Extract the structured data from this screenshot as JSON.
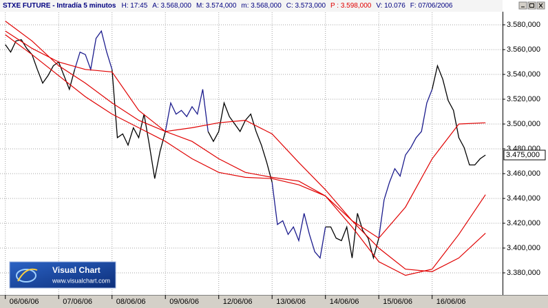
{
  "chart_data": {
    "type": "line",
    "title": "STXE FUTURE - Intradía 5 minutos",
    "info": [
      {
        "text": "H: 17:45",
        "color": "#000080"
      },
      {
        "text": "A: 3.568,000",
        "color": "#000080"
      },
      {
        "text": "M: 3.574,000",
        "color": "#000080"
      },
      {
        "text": "m: 3.568,000",
        "color": "#000080"
      },
      {
        "text": "C: 3.573,000",
        "color": "#000080"
      },
      {
        "text": "P : 3.598,000",
        "color": "#e00000"
      },
      {
        "text": "V: 10.076",
        "color": "#000080"
      },
      {
        "text": "F: 07/06/2006",
        "color": "#000080"
      }
    ],
    "xlim": [
      -0.1,
      9.32
    ],
    "xticks": [
      {
        "value": 0,
        "label": "06/06/06"
      },
      {
        "value": 1,
        "label": "07/06/06"
      },
      {
        "value": 2,
        "label": "08/06/06"
      },
      {
        "value": 3,
        "label": "09/06/06"
      },
      {
        "value": 4,
        "label": "12/06/06"
      },
      {
        "value": 5,
        "label": "13/06/06"
      },
      {
        "value": 6,
        "label": "14/06/06"
      },
      {
        "value": 7,
        "label": "15/06/06"
      },
      {
        "value": 8,
        "label": "16/06/06"
      }
    ],
    "ylim": [
      3367,
      3590
    ],
    "yticks": [
      {
        "value": 3380,
        "label": "3.380,000"
      },
      {
        "value": 3400,
        "label": "3.400,000"
      },
      {
        "value": 3420,
        "label": "3.420,000"
      },
      {
        "value": 3440,
        "label": "3.440,000"
      },
      {
        "value": 3460,
        "label": "3.460,000"
      },
      {
        "value": 3480,
        "label": "3.480,000"
      },
      {
        "value": 3500,
        "label": "3.500,000"
      },
      {
        "value": 3520,
        "label": "3.520,000"
      },
      {
        "value": 3540,
        "label": "3.540,000"
      },
      {
        "value": 3560,
        "label": "3.560,000"
      },
      {
        "value": 3580,
        "label": "3.580,000"
      }
    ],
    "grid": true,
    "last_price": {
      "value": 3475,
      "label": "3.475,000"
    },
    "logo": {
      "name": "Visual Chart",
      "url": "www.visualchart.com"
    },
    "series": [
      {
        "color": "#000000",
        "x": [
          0,
          0.1,
          0.2,
          0.3,
          0.4,
          0.5,
          0.6,
          0.7,
          0.8,
          0.9,
          1,
          1.1,
          1.2,
          1.3,
          1.4,
          1.5,
          1.6,
          1.7,
          1.8,
          1.9,
          2,
          2.1,
          2.2,
          2.3,
          2.4,
          2.5,
          2.6,
          2.7,
          2.8,
          2.9,
          3,
          3.1,
          3.2,
          3.3,
          3.4,
          3.5,
          3.6,
          3.7,
          3.8,
          3.9,
          4,
          4.1,
          4.2,
          4.3,
          4.4,
          4.5,
          4.6,
          4.7,
          4.8,
          4.9,
          5,
          5.1,
          5.2,
          5.3,
          5.4,
          5.5,
          5.6,
          5.7,
          5.8,
          5.9,
          6,
          6.1,
          6.2,
          6.3,
          6.4,
          6.5,
          6.6,
          6.7,
          6.8,
          6.9,
          7,
          7.1,
          7.2,
          7.3,
          7.4,
          7.5,
          7.6,
          7.7,
          7.8,
          7.9,
          8,
          8.1,
          8.2,
          8.3,
          8.4,
          8.5,
          8.6,
          8.7,
          8.8,
          8.9,
          9
        ],
        "values": [
          3564,
          3558,
          3567,
          3568,
          3561,
          3556,
          3544,
          3533,
          3539,
          3547,
          3550,
          3539,
          3528,
          3544,
          null,
          null,
          null,
          null,
          null,
          null,
          3544,
          3489,
          3492,
          3483,
          3497,
          3489,
          3508,
          3483,
          3456,
          3478,
          3494,
          null,
          null,
          null,
          null,
          null,
          null,
          null,
          3494,
          3486,
          3494,
          3517,
          3506,
          3500,
          3494,
          3503,
          3508,
          3494,
          3483,
          3469,
          3453,
          null,
          null,
          null,
          null,
          null,
          null,
          null,
          null,
          null,
          3417,
          3417,
          3408,
          3406,
          3417,
          3392,
          3428,
          3414,
          3408,
          3392,
          3408,
          null,
          null,
          null,
          null,
          null,
          null,
          null,
          null,
          null,
          3528,
          3547,
          3536,
          3519,
          3511,
          3489,
          3481,
          3467,
          3467,
          3472,
          3475
        ]
      },
      {
        "color": "#1a1a8c",
        "x": [
          0,
          0.1,
          0.2,
          0.3,
          0.4,
          0.5,
          0.6,
          0.7,
          0.8,
          0.9,
          1,
          1.1,
          1.2,
          1.3,
          1.4,
          1.5,
          1.6,
          1.7,
          1.8,
          1.9,
          2,
          2.1,
          2.2,
          2.3,
          2.4,
          2.5,
          2.6,
          2.7,
          2.8,
          2.9,
          3,
          3.1,
          3.2,
          3.3,
          3.4,
          3.5,
          3.6,
          3.7,
          3.8,
          3.9,
          4,
          4.1,
          4.2,
          4.3,
          4.4,
          4.5,
          4.6,
          4.7,
          4.8,
          4.9,
          5,
          5.1,
          5.2,
          5.3,
          5.4,
          5.5,
          5.6,
          5.7,
          5.8,
          5.9,
          6,
          6.1,
          6.2,
          6.3,
          6.4,
          6.5,
          6.6,
          6.7,
          6.8,
          6.9,
          7,
          7.1,
          7.2,
          7.3,
          7.4,
          7.5,
          7.6,
          7.7,
          7.8,
          7.9,
          8,
          8.1,
          8.2,
          8.3,
          8.4,
          8.5,
          8.6,
          8.7,
          8.8,
          8.9,
          9
        ],
        "values": [
          null,
          null,
          null,
          null,
          null,
          null,
          null,
          null,
          null,
          null,
          null,
          null,
          null,
          3544,
          3558,
          3556,
          3544,
          3569,
          3575,
          3558,
          3544,
          null,
          null,
          null,
          null,
          null,
          null,
          null,
          null,
          null,
          3494,
          3517,
          3508,
          3511,
          3506,
          3514,
          3508,
          3528,
          3494,
          null,
          null,
          null,
          null,
          null,
          null,
          null,
          null,
          null,
          null,
          null,
          3453,
          3419,
          3422,
          3411,
          3417,
          3406,
          3428,
          3411,
          3397,
          3392,
          3417,
          null,
          null,
          null,
          null,
          null,
          null,
          null,
          null,
          null,
          3408,
          3439,
          3453,
          3464,
          3458,
          3475,
          3481,
          3489,
          3494,
          3517,
          3528,
          null,
          null,
          null,
          null,
          null,
          null,
          null,
          null,
          null,
          null
        ]
      },
      {
        "color": "#e00000",
        "x": [
          0,
          0.5,
          1,
          1.5,
          2,
          2.5,
          3,
          3.5,
          4,
          4.5,
          5,
          5.5,
          6,
          6.5,
          7,
          7.5,
          8,
          8.5,
          9
        ],
        "values": [
          3575,
          3561,
          3550,
          3544,
          3542,
          3511,
          3494,
          3497,
          3501,
          3503,
          3492,
          3469,
          3447,
          3422,
          3408,
          3433,
          3472,
          3500,
          3501
        ]
      },
      {
        "color": "#e00000",
        "x": [
          0,
          0.5,
          1,
          1.5,
          2,
          2.5,
          3,
          3.5,
          4,
          4.5,
          5,
          5.5,
          6,
          6.5,
          7,
          7.5,
          8,
          8.5,
          9
        ],
        "values": [
          3583,
          3567,
          3547,
          3533,
          3517,
          3503,
          3494,
          3486,
          3472,
          3461,
          3457,
          3454,
          3442,
          3417,
          3389,
          3378,
          3383,
          3411,
          3443
        ]
      },
      {
        "color": "#e00000",
        "x": [
          0,
          0.5,
          1,
          1.5,
          2,
          2.5,
          3,
          3.5,
          4,
          4.5,
          5,
          5.5,
          6,
          6.5,
          7,
          7.5,
          8,
          8.5,
          9
        ],
        "values": [
          3572,
          3556,
          3539,
          3522,
          3508,
          3497,
          3486,
          3472,
          3461,
          3457,
          3456,
          3451,
          3442,
          3422,
          3400,
          3383,
          3381,
          3392,
          3412
        ]
      }
    ]
  }
}
